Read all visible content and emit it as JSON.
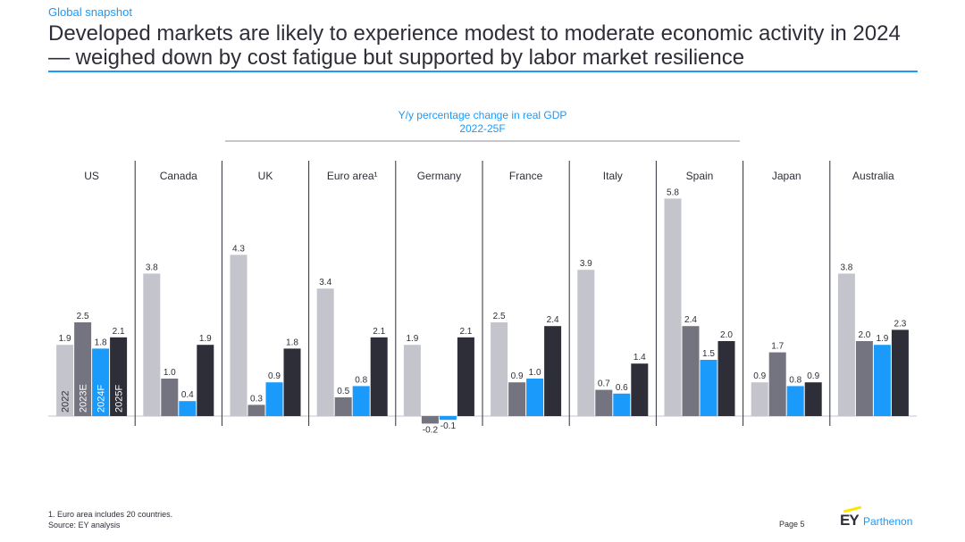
{
  "header": {
    "kicker": "Global snapshot",
    "title": "Developed markets are likely to experience modest to moderate economic activity in 2024 — weighed down by cost fatigue but supported by labor market resilience"
  },
  "chart_data": {
    "type": "bar",
    "title": "Y/y percentage change in real GDP",
    "subtitle": "2022-25F",
    "categories": [
      "US",
      "Canada",
      "UK",
      "Euro area¹",
      "Germany",
      "France",
      "Italy",
      "Spain",
      "Japan",
      "Australia"
    ],
    "series": [
      {
        "name": "2022",
        "color": "#c4c4cd",
        "values": [
          1.9,
          3.8,
          4.3,
          3.4,
          1.9,
          2.5,
          3.9,
          5.8,
          0.9,
          3.8
        ]
      },
      {
        "name": "2023E",
        "color": "#747480",
        "values": [
          2.5,
          1.0,
          0.3,
          0.5,
          -0.2,
          0.9,
          0.7,
          2.4,
          1.7,
          2.0
        ]
      },
      {
        "name": "2024F",
        "color": "#1a9afa",
        "values": [
          1.8,
          0.4,
          0.9,
          0.8,
          -0.1,
          1.0,
          0.6,
          1.5,
          0.8,
          1.9
        ]
      },
      {
        "name": "2025F",
        "color": "#2e2e38",
        "values": [
          2.1,
          1.9,
          1.8,
          2.1,
          2.1,
          2.4,
          1.4,
          2.0,
          0.9,
          2.3
        ]
      }
    ],
    "ylim": [
      -0.3,
      6.0
    ],
    "legend": "series names printed vertically inside the first group's bars",
    "grid": false
  },
  "footer": {
    "note": "1.   Euro area includes  20 countries.",
    "source": "Source:  EY analysis",
    "page": "Page 5",
    "brand_ey": "EY",
    "brand_name": "Parthenon"
  }
}
